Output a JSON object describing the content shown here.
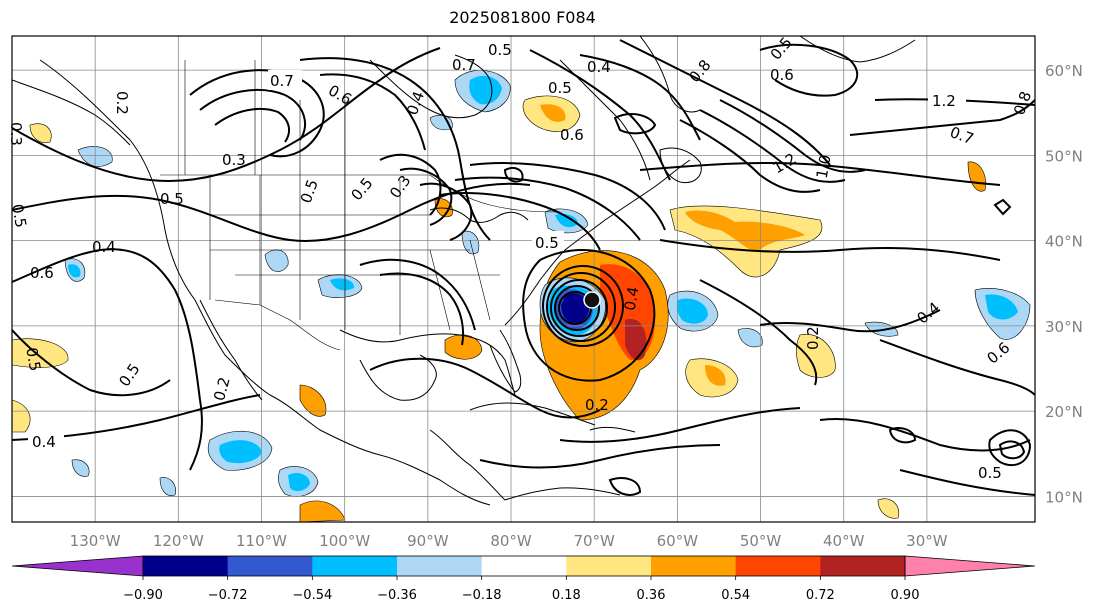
{
  "title": "2025081800 F084",
  "map": {
    "lon_range": [
      -140,
      -17
    ],
    "lat_range": [
      7,
      64
    ],
    "lon_ticks": [
      {
        "lon": -130,
        "label": "130°W"
      },
      {
        "lon": -120,
        "label": "120°W"
      },
      {
        "lon": -110,
        "label": "110°W"
      },
      {
        "lon": -100,
        "label": "100°W"
      },
      {
        "lon": -90,
        "label": "90°W"
      },
      {
        "lon": -80,
        "label": "80°W"
      },
      {
        "lon": -70,
        "label": "70°W"
      },
      {
        "lon": -60,
        "label": "60°W"
      },
      {
        "lon": -50,
        "label": "50°W"
      },
      {
        "lon": -40,
        "label": "40°W"
      },
      {
        "lon": -30,
        "label": "30°W"
      }
    ],
    "lat_ticks": [
      {
        "lat": 60,
        "label": "60°N"
      },
      {
        "lat": 50,
        "label": "50°N"
      },
      {
        "lat": 40,
        "label": "40°N"
      },
      {
        "lat": 30,
        "label": "30°N"
      },
      {
        "lat": 20,
        "label": "20°N"
      },
      {
        "lat": 10,
        "label": "10°N"
      }
    ],
    "storm_center": {
      "lon": -72.5,
      "lat": 34
    }
  },
  "colorbar": {
    "colors": [
      "#9932cc",
      "#00008b",
      "#3458d0",
      "#00bfff",
      "#add8f5",
      "#ffffff",
      "#ffe680",
      "#ff9f00",
      "#ff4500",
      "#b22222",
      "#ff80aa"
    ],
    "tick_labels": [
      "−0.90",
      "−0.72",
      "−0.54",
      "−0.36",
      "−0.18",
      "0.18",
      "0.36",
      "0.54",
      "0.72",
      "0.90"
    ]
  },
  "contour_labels": [
    "0.7",
    "0.4",
    "0.5",
    "0.5",
    "0.4",
    "0.8",
    "1.2",
    "0.8",
    "0.7",
    "1.2",
    "1.0",
    "0.3",
    "0.4",
    "0.6",
    "0.6",
    "0.5",
    "0.3",
    "0.5",
    "0.5",
    "0.6",
    "0.4",
    "0.5",
    "0.7",
    "0.5",
    "0.6",
    "0.2",
    "0.5",
    "0.2",
    "0.2",
    "0.4",
    "0.4",
    "0.3",
    "0.5",
    "0.2",
    "0.6",
    "0.5",
    "0.5"
  ]
}
